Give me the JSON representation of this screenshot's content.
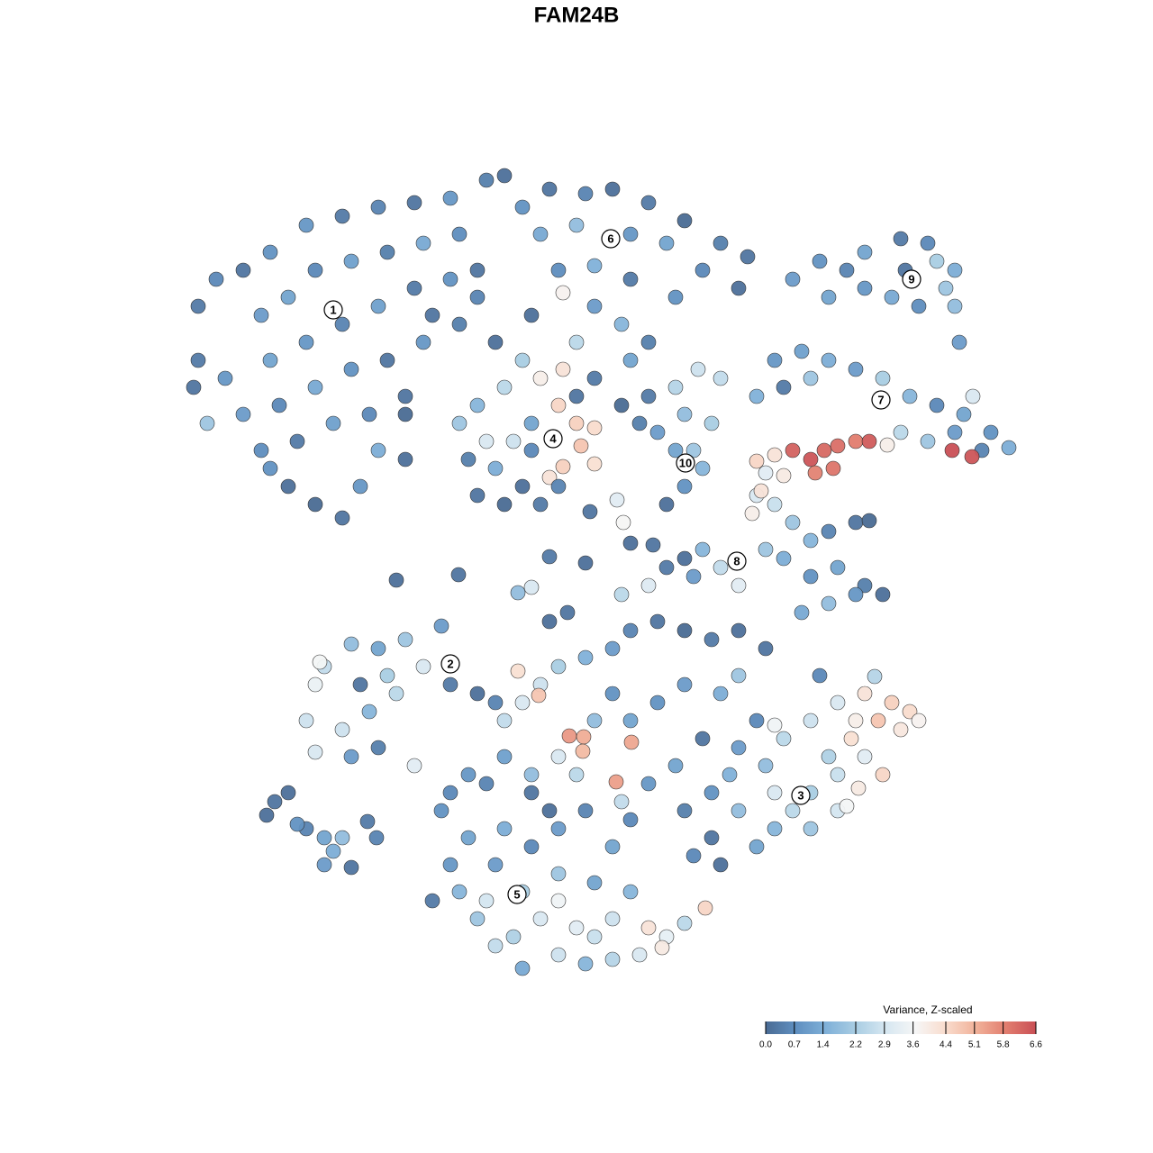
{
  "chart_data": {
    "type": "scatter",
    "title": "FAM24B",
    "colorbar_title": "Variance, Z-scaled",
    "clim": [
      0,
      6.6
    ],
    "cticks": [
      {
        "value": 0,
        "label": "0.0"
      },
      0.7,
      1.4,
      2.2,
      2.9,
      3.6,
      4.4,
      5.1,
      5.8,
      6.6
    ],
    "colorscale": [
      "#4a6b94",
      "#5f8fc0",
      "#7fb0d8",
      "#a9cde3",
      "#d6e7f1",
      "#f6f6f6",
      "#f9dccd",
      "#f1b29a",
      "#e27e6f",
      "#c94f55"
    ],
    "clusters": {
      "labels": [
        "1",
        "6",
        "9",
        "4",
        "10",
        "7",
        "8",
        "2",
        "3",
        "5"
      ],
      "x": [
        37.0,
        67.8,
        101.2,
        61.4,
        76.1,
        97.8,
        81.8,
        50.0,
        88.9,
        57.4
      ],
      "y": [
        -34.4,
        -26.5,
        -31.0,
        -48.7,
        -51.4,
        -44.4,
        -62.3,
        -73.7,
        -88.3,
        -99.3
      ]
    },
    "x": [
      22,
      24,
      27,
      30,
      34,
      38,
      42,
      46,
      50,
      54,
      56,
      22,
      21.5,
      25,
      29,
      32,
      35,
      39,
      43,
      47,
      51,
      30,
      34,
      38,
      42,
      46,
      50,
      53,
      27,
      31,
      35,
      39,
      43,
      47,
      51,
      29,
      33,
      37,
      41,
      45,
      32,
      35,
      38,
      40,
      23,
      30,
      42,
      45,
      48,
      53,
      55,
      45,
      58,
      61,
      65,
      68,
      72,
      76,
      80,
      83,
      60,
      64,
      70,
      74,
      78,
      82,
      62,
      66,
      70,
      75,
      62.5,
      66,
      69,
      72,
      59,
      64,
      70,
      88,
      91,
      94,
      96,
      100,
      103,
      106,
      106,
      106.5,
      102,
      99,
      96,
      92,
      104,
      105,
      100.5,
      86,
      89,
      92,
      95,
      98,
      101,
      104,
      107,
      110,
      112,
      109,
      100,
      103,
      87,
      84,
      90,
      106,
      108,
      88,
      90,
      91.5,
      93,
      95,
      96.5,
      90.5,
      92.5,
      105.7,
      107.9,
      98.5,
      86,
      84,
      87,
      85,
      75,
      77.5,
      80,
      76,
      79,
      75,
      78,
      76,
      77,
      72,
      73,
      84,
      86,
      83.5,
      84.5,
      88,
      90,
      92,
      95,
      96.5,
      87,
      90,
      93,
      96,
      98,
      89,
      92,
      95,
      78,
      80,
      85,
      77,
      82,
      51,
      53,
      56,
      58,
      60,
      62.5,
      62,
      64,
      66,
      64.5,
      66,
      62.5,
      61,
      52,
      55,
      57,
      59,
      53,
      56,
      60,
      62,
      58,
      64,
      66,
      69,
      71,
      54,
      59,
      65.5,
      68.5,
      69.2,
      70,
      72.5,
      61,
      65,
      57.5,
      59,
      44,
      50.9,
      74,
      34,
      35,
      36,
      39,
      42,
      45,
      49,
      47,
      44,
      41,
      38,
      35,
      39,
      42,
      46,
      50,
      53,
      55,
      40,
      43,
      35.5,
      49,
      52,
      50,
      51,
      53,
      55,
      58,
      62,
      65,
      68,
      71,
      74,
      76,
      73.5,
      72,
      78.3,
      55,
      58,
      60,
      64,
      68,
      70,
      66,
      62,
      59,
      56,
      62,
      65,
      68,
      70,
      54,
      62,
      57,
      66,
      48,
      59,
      61,
      56,
      58,
      60,
      57.5,
      59.8,
      62,
      65,
      68,
      70,
      73,
      76,
      79,
      82,
      85,
      61,
      63,
      66,
      63.2,
      64.8,
      64.7,
      70.1,
      68.4,
      64,
      62,
      70,
      73,
      76,
      80,
      82,
      84,
      78,
      75,
      72,
      69,
      59,
      56,
      54,
      50,
      52,
      76,
      79,
      80,
      77,
      68,
      69,
      72,
      74,
      76,
      82,
      85,
      87,
      90,
      93,
      96,
      99,
      101,
      100,
      97.5,
      95,
      94.5,
      102,
      98,
      96,
      93,
      90,
      88,
      86,
      84,
      90,
      93,
      86,
      82,
      79,
      81,
      91,
      97.1,
      94,
      95.3,
      86,
      92,
      29.6,
      30.5,
      32,
      34,
      36,
      37,
      36,
      38,
      39,
      40.8,
      41.8,
      33
    ],
    "values": [
      -34,
      -31,
      -30,
      -28,
      -25,
      -24,
      -23,
      -22.5,
      -22,
      -20,
      -19.5,
      -40,
      -43,
      -42,
      -35,
      -33,
      -30,
      -29,
      -28,
      -27,
      -26,
      -40,
      -38,
      -36,
      -34,
      -32,
      -31,
      -30,
      -46,
      -45,
      -43,
      -41,
      -40,
      -38,
      -36,
      -50,
      -49,
      -47,
      -46,
      -44,
      -54,
      -56,
      -57.5,
      -54,
      -47,
      -52,
      -50,
      -51,
      -35,
      -33,
      -38,
      -46,
      -23,
      -21,
      -21.5,
      -21,
      -22.5,
      -24.5,
      -27,
      -28.5,
      -26,
      -25,
      -26,
      -27,
      -30,
      -32,
      -30,
      -29.5,
      -31,
      -33,
      -32.5,
      -34,
      -36,
      -38,
      -35,
      -38,
      -40,
      -31,
      -29,
      -30,
      -28,
      -26.5,
      -27,
      -30,
      -34,
      -38,
      -34,
      -33,
      -32,
      -33,
      -29,
      -32,
      -30,
      -40,
      -39,
      -40,
      -41,
      -42,
      -44,
      -45,
      -46,
      -48,
      -49.7,
      -50,
      -48,
      -49,
      -43,
      -44,
      -42,
      -48,
      -44,
      -50,
      -51,
      -50,
      -49.5,
      -49,
      -49,
      -52.5,
      -52,
      -50,
      -50.7,
      -49.4,
      -50.5,
      -51.2,
      -52.8,
      -52.5,
      -43,
      -41,
      -42,
      -46,
      -47,
      -50,
      -52,
      -54,
      -50,
      -44,
      -48,
      -55,
      -56,
      -57,
      -54.5,
      -58,
      -60,
      -59,
      -58,
      -57.8,
      -62,
      -64,
      -63,
      -65,
      -66,
      -68,
      -67,
      -66,
      -61,
      -63,
      -61,
      -64,
      -65,
      -47,
      -45,
      -43,
      -40,
      -42,
      -41,
      -45,
      -47,
      -47.5,
      -49.5,
      -51.5,
      -51.8,
      -53,
      -51,
      -52,
      -49,
      -47,
      -55,
      -56,
      -56,
      -54,
      -54,
      -44,
      -42,
      -45,
      -47,
      -49,
      -50,
      -56.8,
      -55.5,
      -58,
      -60.3,
      -60.5,
      -61.8,
      -62.5,
      -65.8,
      -65.2,
      -64.4,
      -63.8,
      -56,
      -80,
      -76,
      -74,
      -71.5,
      -72,
      -71,
      -69.5,
      -74,
      -77,
      -79,
      -81,
      -83.5,
      -84,
      -83,
      -85,
      -76,
      -77,
      -78,
      -76,
      -75,
      -73.5,
      -90,
      -93,
      -96,
      -99,
      -102,
      -105,
      -107.5,
      -106,
      -107,
      -106.5,
      -106,
      -104,
      -102.5,
      -105.2,
      -103,
      -100.8,
      -96,
      -99,
      -102,
      -103,
      -102,
      -99,
      -98,
      -97,
      -94,
      -92,
      -92,
      -90,
      -94,
      -91,
      -100,
      -100,
      -104,
      -104,
      -100,
      -88,
      -90,
      -80,
      -78,
      -76,
      -74.5,
      -77.2,
      -74,
      -73,
      -72,
      -70,
      -69,
      -70,
      -71,
      -70,
      -72,
      -69,
      -68,
      -80,
      -81.7,
      -81.8,
      -83.4,
      -82.4,
      -86.8,
      -86,
      -84,
      -80,
      -78,
      -76,
      -77,
      -75,
      -80,
      -82,
      -85,
      -87,
      -89,
      -86,
      -84,
      -87,
      -88,
      -86,
      -90,
      -93,
      -96,
      -95,
      -77,
      -66,
      -65,
      -63,
      -62,
      -83,
      -85,
      -82,
      -80,
      -78,
      -77,
      -78,
      -79,
      -81,
      -80,
      -80,
      -82,
      -80,
      -86,
      -84,
      -86,
      -88,
      -90,
      -92,
      -94,
      -92,
      -90,
      -88,
      -90,
      -88,
      -86,
      -75,
      -75.1,
      -89.5,
      -87.5,
      -80.5,
      -84,
      -90.5,
      -89,
      -88,
      -92,
      -93,
      -94.5,
      -96,
      -93,
      -96.3,
      -91.2,
      -93,
      -91.5
    ],
    "color_values": [
      0.3,
      0.6,
      0.2,
      0.8,
      0.9,
      0.3,
      0.5,
      0.2,
      0.9,
      0.4,
      0.1,
      0.3,
      0.2,
      0.9,
      1.0,
      1.2,
      0.6,
      1.1,
      0.4,
      1.3,
      0.7,
      1.2,
      0.9,
      0.5,
      1.1,
      0.3,
      0.8,
      0.2,
      1.0,
      0.6,
      1.3,
      0.8,
      0.2,
      0.9,
      0.4,
      0.7,
      0.3,
      1.1,
      0.6,
      0.2,
      0.1,
      0.0,
      0.2,
      0.9,
      2.0,
      0.8,
      1.4,
      0.1,
      0.2,
      0.5,
      0.1,
      0.0,
      0.8,
      0.2,
      0.5,
      0.1,
      0.3,
      0.0,
      0.4,
      0.2,
      1.3,
      1.8,
      0.9,
      1.2,
      0.6,
      0.1,
      0.7,
      1.5,
      0.3,
      0.8,
      3.8,
      1.0,
      1.6,
      0.4,
      0.1,
      2.5,
      1.2,
      1.0,
      0.8,
      0.5,
      1.2,
      0.3,
      0.6,
      1.4,
      1.8,
      1.0,
      0.7,
      1.3,
      0.9,
      1.2,
      2.2,
      2.0,
      0.2,
      0.9,
      1.1,
      1.4,
      1.0,
      2.2,
      1.6,
      0.6,
      1.2,
      0.8,
      1.4,
      0.5,
      2.5,
      2.0,
      0.3,
      1.5,
      2.0,
      1.0,
      3.0,
      6.3,
      6.5,
      6.2,
      6.1,
      5.9,
      6.4,
      5.8,
      6.0,
      6.6,
      6.5,
      3.9,
      4.2,
      4.5,
      4.0,
      3.2,
      2.4,
      2.8,
      2.6,
      1.8,
      2.2,
      1.2,
      1.6,
      0.8,
      2.0,
      0.3,
      1.0,
      3.0,
      2.7,
      3.9,
      4.2,
      2.0,
      1.6,
      0.5,
      0.2,
      0.0,
      1.4,
      0.8,
      1.2,
      0.4,
      0.1,
      1.3,
      1.8,
      0.9,
      1.6,
      2.6,
      2.0,
      1.0,
      3.2,
      2.0,
      1.6,
      2.5,
      2.2,
      3.9,
      4.2,
      4.5,
      4.6,
      4.4,
      4.8,
      4.3,
      4.6,
      4.2,
      0.4,
      1.4,
      2.8,
      1.2,
      0.2,
      0.0,
      0.3,
      0.5,
      0.1,
      0.2,
      0.3,
      0.0,
      0.4,
      3.0,
      0.6,
      0.2,
      3.2,
      3.7,
      0.1,
      0.2,
      0.3,
      0.1,
      1.8,
      3.0,
      0.1,
      0.2,
      0.1,
      2.8,
      3.4,
      2.6,
      1.8,
      1.2,
      2.0,
      1.0,
      3.0,
      2.5,
      1.6,
      2.8,
      3.0,
      1.0,
      0.4,
      3.2,
      0.3,
      0.1,
      0.5,
      0.2,
      2.2,
      3.6,
      0.8,
      1.2,
      0.9,
      1.6,
      2.0,
      2.6,
      1.3,
      2.8,
      1.6,
      2.4,
      3.0,
      3.3,
      2.5,
      4.0,
      4.2,
      4.5,
      1.0,
      2.2,
      3.0,
      3.2,
      2.8,
      1.6,
      1.2,
      2.0,
      0.6,
      1.4,
      1.0,
      0.5,
      1.2,
      0.6,
      2.9,
      3.5,
      2.3,
      2.7,
      0.3,
      0.2,
      0.1,
      2.6,
      3.0,
      2.8,
      4.3,
      4.8,
      2.2,
      1.5,
      1.0,
      0.5,
      0.2,
      0.0,
      0.3,
      0.1,
      0.2,
      0.1,
      0.2,
      1.8,
      5.5,
      5.2,
      5.0,
      5.3,
      5.4,
      2.5,
      3.0,
      1.2,
      0.8,
      1.0,
      1.4,
      2.0,
      0.6,
      0.2,
      1.2,
      0.9,
      2.6,
      1.8,
      1.1,
      0.5,
      0.6,
      0.9,
      0.4,
      0.2,
      0.1,
      0.6,
      0.8,
      2.5,
      3.1,
      0.3,
      0.1,
      1.0,
      1.8,
      2.5,
      2.8,
      3.0,
      4.2,
      4.6,
      4.4,
      4.1,
      4.8,
      3.9,
      4.3,
      3.8,
      4.5,
      3.2,
      2.7,
      2.2,
      2.5,
      1.6,
      1.2,
      2.0,
      2.9,
      3.0,
      1.8,
      0.8,
      1.5,
      0.6,
      2.4,
      3.6,
      4.0,
      3.5,
      2.3,
      0.1,
      0.2,
      0.1,
      0.5,
      1.2,
      1.4,
      1.0,
      1.8,
      0.2,
      0.3,
      0.5,
      0.8
    ]
  }
}
